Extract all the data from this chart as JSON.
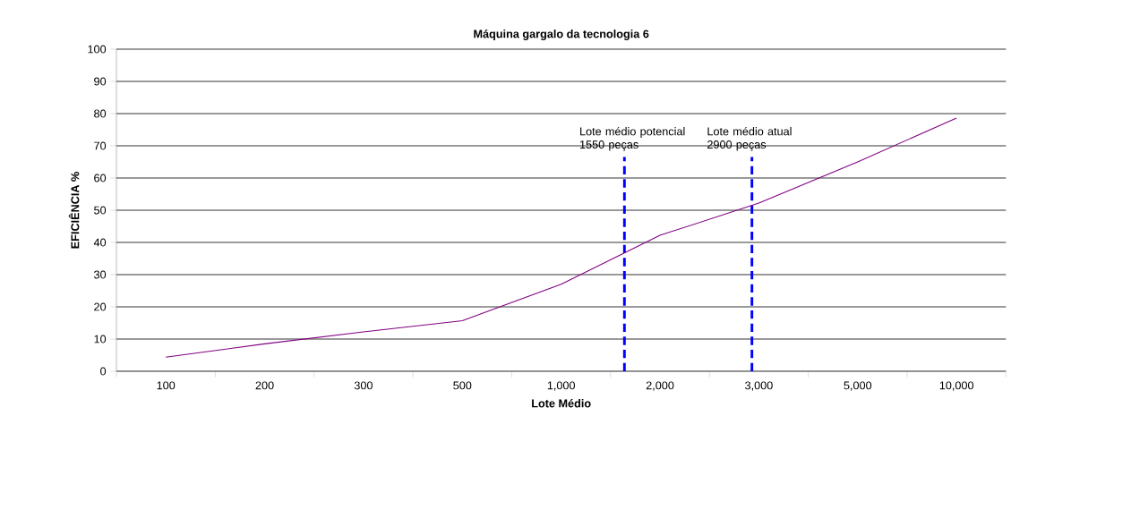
{
  "chart_data": {
    "type": "line",
    "title": "Máquina gargalo da tecnologia 6",
    "xlabel": "Lote Médio",
    "ylabel": "EFICIÊNCIA %",
    "categories": [
      "100",
      "200",
      "300",
      "500",
      "1,000",
      "2,000",
      "3,000",
      "5,000",
      "10,000"
    ],
    "series": [
      {
        "color": "#800080",
        "values": [
          4.4,
          8.5,
          12.2,
          15.7,
          27,
          42.2,
          52.2,
          65,
          78.6
        ]
      }
    ],
    "ylim": [
      0,
      100
    ],
    "yticks": [
      0,
      10,
      20,
      30,
      40,
      50,
      60,
      70,
      80,
      90,
      100
    ],
    "grid": "y",
    "legend": false,
    "marker": "none",
    "line_style": "solid",
    "annotations": [
      "Lote médio potencial 1550 peças",
      "Lote médio atual 2900 peças"
    ]
  }
}
